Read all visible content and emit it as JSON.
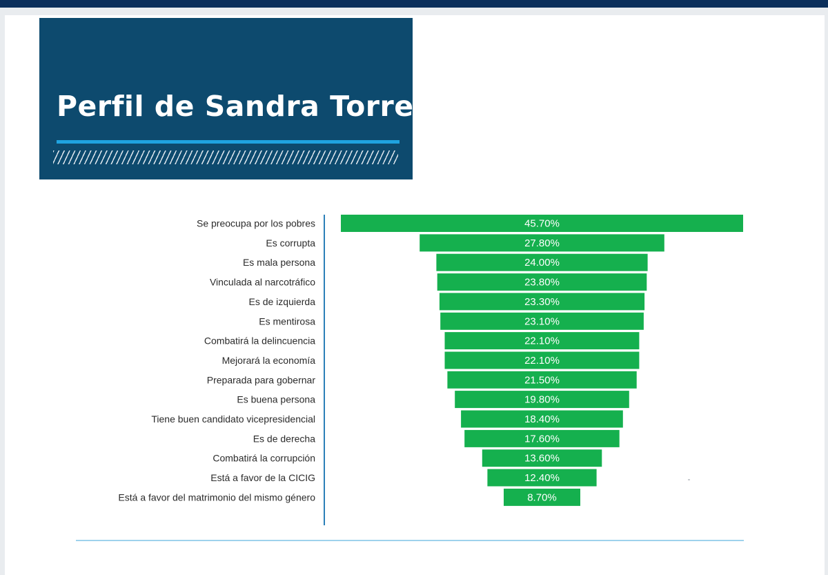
{
  "header": {
    "title": "Perfil de Sandra Torres"
  },
  "colors": {
    "title_bg": "#0d4a6e",
    "accent_line": "#1fa3e0",
    "bar": "#15b04e",
    "axis": "#2a7fb8"
  },
  "chart_data": {
    "type": "bar",
    "orientation": "horizontal-centered (funnel)",
    "title": "Perfil de Sandra Torres",
    "categories": [
      "Se preocupa por los pobres",
      "Es corrupta",
      "Es mala persona",
      "Vinculada al narcotráfico",
      "Es de izquierda",
      "Es mentirosa",
      "Combatirá la delincuencia",
      "Mejorará la economía",
      "Preparada para gobernar",
      "Es buena persona",
      "Tiene buen candidato vicepresidencial",
      "Es de derecha",
      "Combatirá la corrupción",
      "Está a favor de la CICIG",
      "Está a favor del matrimonio del mismo género"
    ],
    "values": [
      45.7,
      27.8,
      24.0,
      23.8,
      23.3,
      23.1,
      22.1,
      22.1,
      21.5,
      19.8,
      18.4,
      17.6,
      13.6,
      12.4,
      8.7
    ],
    "value_labels": [
      "45.70%",
      "27.80%",
      "24.00%",
      "23.80%",
      "23.30%",
      "23.10%",
      "22.10%",
      "22.10%",
      "21.50%",
      "19.80%",
      "18.40%",
      "17.60%",
      "13.60%",
      "12.40%",
      "8.70%"
    ],
    "unit": "%",
    "grid": false,
    "legend": "none"
  }
}
